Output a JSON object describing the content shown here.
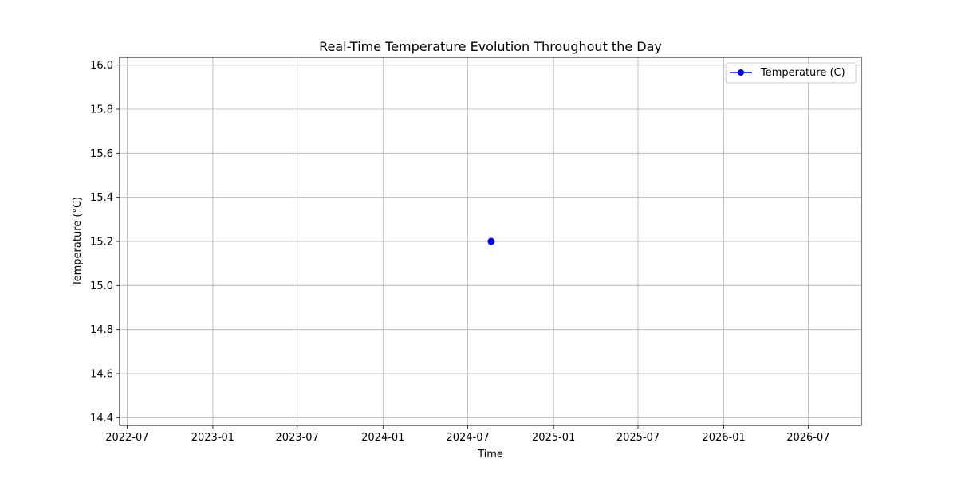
{
  "chart_data": {
    "type": "line",
    "title": "Real-Time Temperature Evolution Throughout the Day",
    "xlabel": "Time",
    "ylabel": "Temperature (°C)",
    "x_axis_type": "date",
    "xlim": [
      "2022-06-15",
      "2026-10-23"
    ],
    "ylim": [
      14.365,
      16.035
    ],
    "x_ticks": [
      "2022-07",
      "2023-01",
      "2023-07",
      "2024-01",
      "2024-07",
      "2025-01",
      "2025-07",
      "2026-01",
      "2026-07"
    ],
    "y_ticks": [
      "14.4",
      "14.6",
      "14.8",
      "15.0",
      "15.2",
      "15.4",
      "15.6",
      "15.8",
      "16.0"
    ],
    "grid": true,
    "legend_position": "top-right",
    "series": [
      {
        "name": "Temperature (C)",
        "color": "#0000ff",
        "marker": "circle",
        "points": [
          {
            "x": "2024-08-20",
            "y": 15.2
          }
        ]
      }
    ]
  }
}
